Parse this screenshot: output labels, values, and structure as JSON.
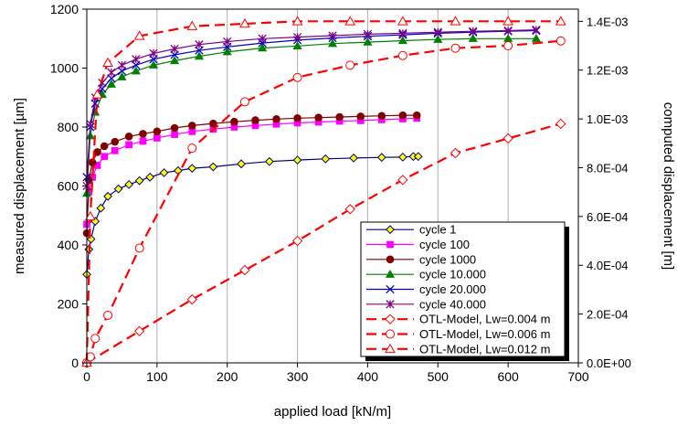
{
  "chart_data": {
    "type": "line",
    "title": "",
    "xlabel": "applied load [kN/m]",
    "ylabel_left": "measured displacement [µm]",
    "ylabel_right": "computed displacement [m]",
    "xlim": [
      0,
      700
    ],
    "ylim_left": [
      0,
      1200
    ],
    "ylim_right": [
      0,
      0.00145
    ],
    "x_ticks": [
      "0",
      "100",
      "200",
      "300",
      "400",
      "500",
      "600",
      "700"
    ],
    "y_ticks_left": [
      "0",
      "200",
      "400",
      "600",
      "800",
      "1000",
      "1200"
    ],
    "y_ticks_right": [
      "0.0E+00",
      "2.0E-04",
      "4.0E-04",
      "6.0E-04",
      "8.0E-04",
      "1.0E-03",
      "1.2E-03",
      "1.4E-03"
    ],
    "grid": "vertical gridlines only",
    "legend_position": "bottom-right",
    "series": [
      {
        "name": "cycle 1",
        "axis": "left",
        "color": "#000080",
        "marker": "diamond",
        "marker_fill": "#ffff00",
        "x": [
          0,
          3,
          6,
          12,
          20,
          30,
          45,
          60,
          75,
          90,
          110,
          130,
          150,
          180,
          220,
          260,
          300,
          340,
          380,
          420,
          450,
          465,
          472
        ],
        "y": [
          300,
          385,
          420,
          480,
          525,
          565,
          590,
          605,
          618,
          630,
          645,
          652,
          660,
          665,
          675,
          683,
          688,
          692,
          695,
          697,
          698,
          700,
          700
        ]
      },
      {
        "name": "cycle 100",
        "axis": "left",
        "color": "#ff00ff",
        "marker": "square",
        "marker_fill": "#ff00ff",
        "x": [
          0,
          3,
          8,
          15,
          25,
          40,
          60,
          80,
          100,
          125,
          150,
          180,
          210,
          240,
          270,
          300,
          330,
          360,
          390,
          420,
          450,
          470
        ],
        "y": [
          470,
          580,
          630,
          670,
          700,
          720,
          740,
          752,
          763,
          775,
          785,
          793,
          800,
          805,
          810,
          814,
          817,
          820,
          822,
          825,
          828,
          830
        ]
      },
      {
        "name": "cycle 1000",
        "axis": "left",
        "color": "#800000",
        "marker": "circle",
        "marker_fill": "#800000",
        "x": [
          0,
          3,
          8,
          15,
          25,
          40,
          60,
          80,
          100,
          125,
          150,
          180,
          210,
          240,
          270,
          300,
          330,
          360,
          390,
          420,
          450,
          470
        ],
        "y": [
          440,
          620,
          680,
          715,
          735,
          750,
          768,
          777,
          785,
          797,
          805,
          812,
          818,
          823,
          827,
          830,
          832,
          834,
          836,
          838,
          840,
          840
        ]
      },
      {
        "name": "cycle 10.000",
        "axis": "left",
        "color": "#008000",
        "marker": "triangle",
        "marker_fill": "#008000",
        "x": [
          0,
          5,
          12,
          22,
          35,
          50,
          70,
          95,
          125,
          160,
          200,
          250,
          300,
          350,
          400,
          450,
          500,
          550,
          600,
          640
        ],
        "y": [
          575,
          770,
          850,
          910,
          945,
          970,
          990,
          1010,
          1025,
          1040,
          1055,
          1068,
          1075,
          1083,
          1088,
          1093,
          1097,
          1100,
          1100,
          1100
        ]
      },
      {
        "name": "cycle 20.000",
        "axis": "left",
        "color": "#0000cc",
        "marker": "x",
        "marker_fill": "none",
        "x": [
          0,
          5,
          12,
          22,
          35,
          50,
          70,
          95,
          125,
          160,
          200,
          250,
          300,
          350,
          400,
          450,
          500,
          550,
          600,
          640
        ],
        "y": [
          630,
          800,
          880,
          930,
          965,
          990,
          1010,
          1030,
          1045,
          1060,
          1072,
          1085,
          1095,
          1102,
          1108,
          1113,
          1118,
          1122,
          1125,
          1127
        ]
      },
      {
        "name": "cycle 40.000",
        "axis": "left",
        "color": "#800080",
        "marker": "star",
        "marker_fill": "none",
        "x": [
          0,
          5,
          12,
          22,
          35,
          50,
          70,
          95,
          125,
          160,
          200,
          250,
          300,
          350,
          400,
          450,
          500,
          550,
          600,
          640
        ],
        "y": [
          600,
          810,
          900,
          950,
          985,
          1010,
          1030,
          1050,
          1065,
          1080,
          1090,
          1100,
          1105,
          1110,
          1115,
          1118,
          1122,
          1125,
          1127,
          1130
        ]
      },
      {
        "name": "OTL-Model, Lw=0.004 m",
        "axis": "right",
        "color": "#ff0000",
        "dashed": true,
        "marker": "diamond",
        "marker_fill": "#ffffff",
        "x": [
          0,
          75,
          150,
          225,
          300,
          375,
          450,
          525,
          600,
          675
        ],
        "y": [
          5e-07,
          0.00013,
          0.00026,
          0.00038,
          0.0005,
          0.00063,
          0.00075,
          0.00086,
          0.00092,
          0.00098
        ]
      },
      {
        "name": "OTL-Model, Lw=0.006 m",
        "axis": "right",
        "color": "#ff0000",
        "dashed": true,
        "marker": "circle",
        "marker_fill": "#ffffff",
        "x": [
          0,
          5,
          12,
          30,
          75,
          150,
          225,
          300,
          375,
          450,
          525,
          600,
          675
        ],
        "y": [
          5e-07,
          2.5e-05,
          0.0001,
          0.000195,
          0.00047,
          0.00088,
          0.00107,
          0.00117,
          0.00122,
          0.00126,
          0.00129,
          0.0013,
          0.00132
        ]
      },
      {
        "name": "OTL-Model, Lw=0.012 m",
        "axis": "right",
        "color": "#ff0000",
        "dashed": true,
        "marker": "triangle",
        "marker_fill": "#ffffff",
        "x": [
          0,
          5,
          15,
          30,
          75,
          150,
          225,
          300,
          375,
          450,
          525,
          600,
          675
        ],
        "y": [
          5e-07,
          0.0006,
          0.0011,
          0.00123,
          0.00134,
          0.00138,
          0.00139,
          0.0014,
          0.0014,
          0.0014,
          0.0014,
          0.0014,
          0.0014
        ]
      }
    ]
  }
}
